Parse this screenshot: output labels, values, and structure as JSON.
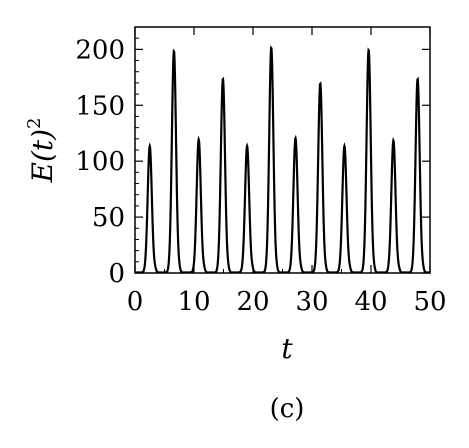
{
  "chart_data": {
    "type": "line",
    "panel_label": "(c)",
    "xlabel": "t",
    "ylabel": "E(t)",
    "ylabel_sup": "2",
    "xlim": [
      0,
      50
    ],
    "ylim": [
      0,
      220
    ],
    "xticks": [
      0,
      10,
      20,
      30,
      40,
      50
    ],
    "yticks": [
      0,
      50,
      100,
      150,
      200
    ],
    "xticklabels": [
      "0",
      "10",
      "20",
      "30",
      "40",
      "50"
    ],
    "yticklabels": [
      "0",
      "50",
      "100",
      "150",
      "200"
    ],
    "peak_width": 0.5,
    "series": [
      {
        "peaks_t": [
          2.5,
          6.6,
          10.8,
          14.9,
          19.0,
          23.1,
          27.2,
          31.4,
          35.5,
          39.6,
          43.8,
          47.9
        ],
        "peaks_E": [
          113,
          198,
          119,
          173,
          113,
          201,
          120,
          169,
          113,
          199,
          118,
          173
        ]
      }
    ]
  }
}
